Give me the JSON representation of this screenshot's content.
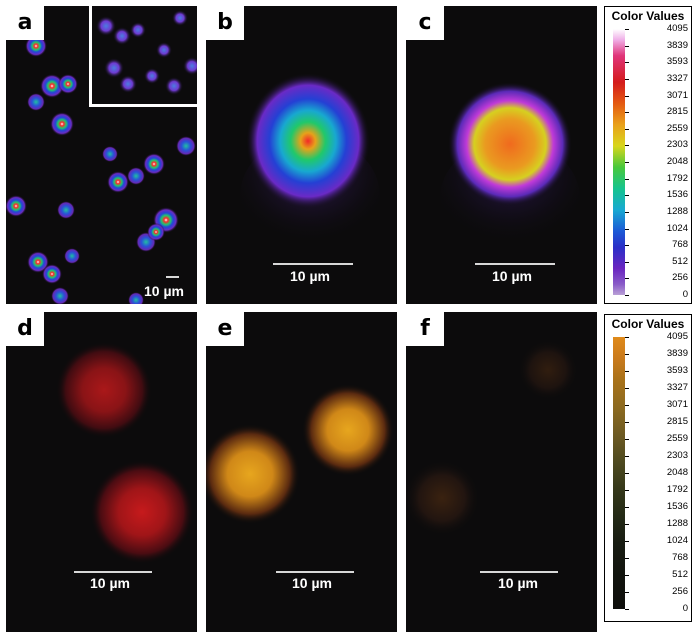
{
  "panels": {
    "a": {
      "label": "a",
      "scale": "10 µm"
    },
    "b": {
      "label": "b",
      "scale": "10 µm"
    },
    "c": {
      "label": "c",
      "scale": "10 µm"
    },
    "d": {
      "label": "d",
      "scale": "10 µm"
    },
    "e": {
      "label": "e",
      "scale": "10 µm"
    },
    "f": {
      "label": "f",
      "scale": "10 µm"
    }
  },
  "colorbar_top": {
    "title": "Color Values",
    "ticks": [
      "4095",
      "3839",
      "3593",
      "3327",
      "3071",
      "2815",
      "2559",
      "2303",
      "2048",
      "1792",
      "1536",
      "1288",
      "1024",
      "768",
      "512",
      "256",
      "0"
    ]
  },
  "colorbar_bottom": {
    "title": "Color Values",
    "ticks": [
      "4095",
      "3839",
      "3593",
      "3327",
      "3071",
      "2815",
      "2559",
      "2303",
      "2048",
      "1792",
      "1536",
      "1288",
      "1024",
      "768",
      "512",
      "256",
      "0"
    ]
  },
  "colors": {
    "background": "#ffffff",
    "image_dark": "#0c0b0c",
    "rainbow_hot": "#ff1010",
    "rainbow_mid": "#12d07a",
    "rainbow_low": "#5b2bd2",
    "red_signal": "#c1181b",
    "yellow_signal": "#e7a31c"
  }
}
